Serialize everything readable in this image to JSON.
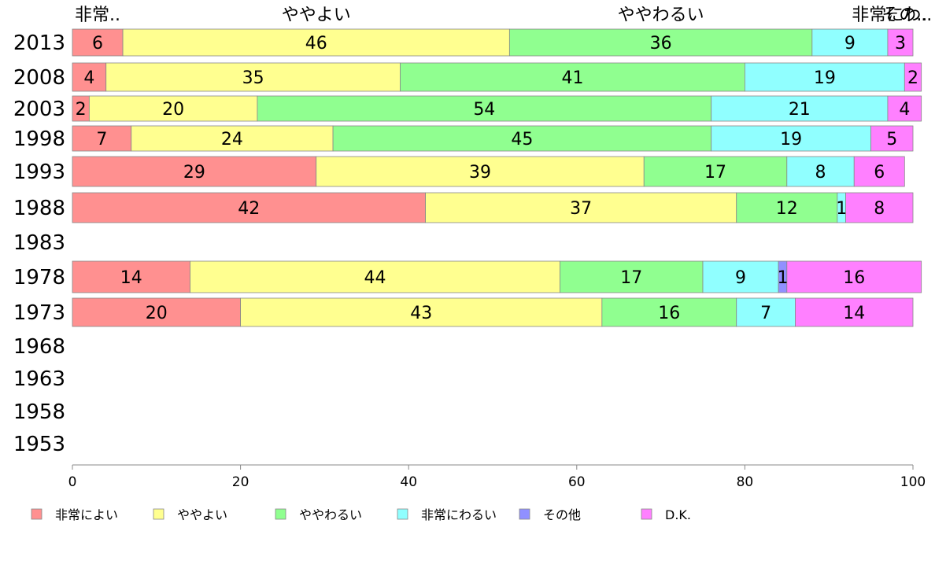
{
  "chart_data": {
    "type": "bar",
    "orientation": "horizontal",
    "stacked": true,
    "title": "",
    "xlabel": "",
    "ylabel": "",
    "xlim": [
      0,
      100
    ],
    "x_ticks": [
      0,
      20,
      40,
      60,
      80,
      100
    ],
    "categories": [
      "2013",
      "2008",
      "2003",
      "1998",
      "1993",
      "1988",
      "1983",
      "1978",
      "1973",
      "1968",
      "1963",
      "1958",
      "1953"
    ],
    "series": [
      {
        "name": "非常によい",
        "short_label": "非常..",
        "color": "#ff9090",
        "values": [
          6,
          4,
          2,
          7,
          29,
          42,
          null,
          14,
          20,
          null,
          null,
          null,
          null
        ]
      },
      {
        "name": "ややよい",
        "short_label": "ややよい",
        "color": "#ffff90",
        "values": [
          46,
          35,
          20,
          24,
          39,
          37,
          null,
          44,
          43,
          null,
          null,
          null,
          null
        ]
      },
      {
        "name": "ややわるい",
        "short_label": "ややわるい",
        "color": "#90ff90",
        "values": [
          36,
          41,
          54,
          45,
          17,
          12,
          null,
          17,
          16,
          null,
          null,
          null,
          null
        ]
      },
      {
        "name": "非常にわるい",
        "short_label": "非常にわ..",
        "color": "#90ffff",
        "values": [
          9,
          19,
          21,
          19,
          8,
          1,
          null,
          9,
          7,
          null,
          null,
          null,
          null
        ]
      },
      {
        "name": "その他",
        "short_label": "その..",
        "color": "#9090ff",
        "values": [
          0,
          0,
          0,
          0,
          0,
          0,
          null,
          1,
          0,
          null,
          null,
          null,
          null
        ]
      },
      {
        "name": "D.K.",
        "short_label": "",
        "color": "#ff80ff",
        "values": [
          3,
          2,
          4,
          5,
          6,
          8,
          null,
          16,
          14,
          null,
          null,
          null,
          null
        ]
      }
    ],
    "legend_position": "bottom",
    "grid": false
  }
}
